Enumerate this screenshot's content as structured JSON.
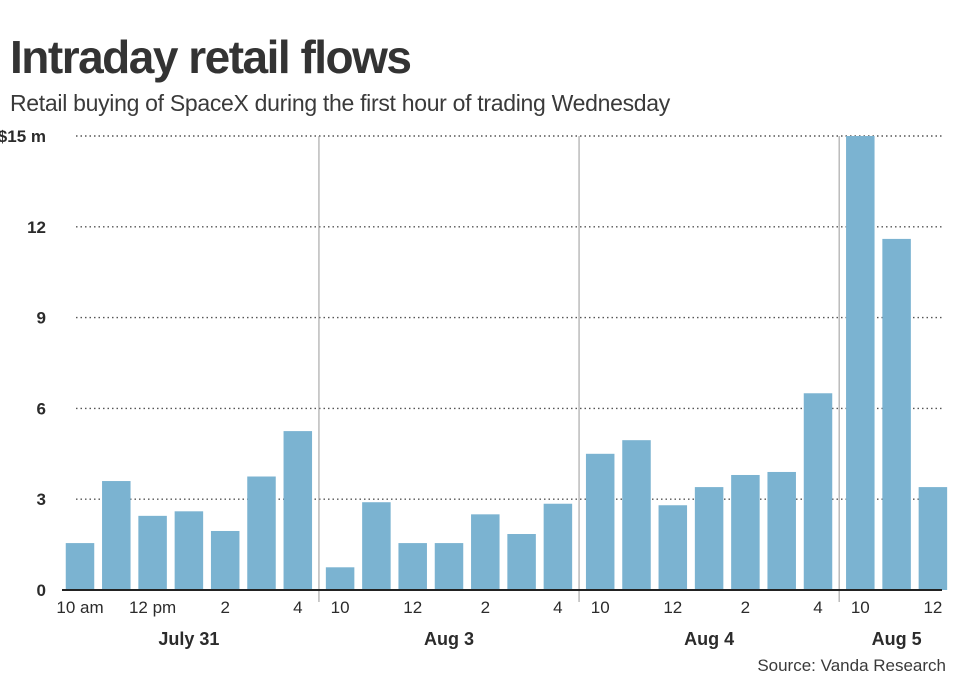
{
  "title": "Intraday retail flows",
  "subtitle": "Retail buying of SpaceX during the first hour of trading Wednesday",
  "source": "Source: Vanda Research",
  "colors": {
    "bar": "#7bb3d1",
    "grid": "#555555",
    "separator": "#999999",
    "axis": "#222222"
  },
  "chart_data": {
    "type": "bar",
    "title": "Intraday retail flows",
    "subtitle": "Retail buying of SpaceX during the first hour of trading Wednesday",
    "ylim": [
      0,
      15
    ],
    "yticks": [
      {
        "value": 0,
        "label": "0"
      },
      {
        "value": 3,
        "label": "3"
      },
      {
        "value": 6,
        "label": "6"
      },
      {
        "value": 9,
        "label": "9"
      },
      {
        "value": 12,
        "label": "12"
      },
      {
        "value": 15,
        "label": "$15 m"
      }
    ],
    "grid": "horizontal-dotted",
    "groups": [
      {
        "label": "July 31",
        "values": [
          1.55,
          3.6,
          2.45,
          2.6,
          1.95,
          3.75,
          5.25
        ],
        "tick_labels": [
          {
            "index": 0,
            "label": "10 am"
          },
          {
            "index": 2,
            "label": "12 pm"
          },
          {
            "index": 4,
            "label": "2"
          },
          {
            "index": 6,
            "label": "4"
          }
        ]
      },
      {
        "label": "Aug 3",
        "values": [
          0.75,
          2.9,
          1.55,
          1.55,
          2.5,
          1.85,
          2.85
        ],
        "tick_labels": [
          {
            "index": 0,
            "label": "10"
          },
          {
            "index": 2,
            "label": "12"
          },
          {
            "index": 4,
            "label": "2"
          },
          {
            "index": 6,
            "label": "4"
          }
        ]
      },
      {
        "label": "Aug 4",
        "values": [
          4.5,
          4.95,
          2.8,
          3.4,
          3.8,
          3.9,
          6.5
        ],
        "tick_labels": [
          {
            "index": 0,
            "label": "10"
          },
          {
            "index": 2,
            "label": "12"
          },
          {
            "index": 4,
            "label": "2"
          },
          {
            "index": 6,
            "label": "4"
          }
        ]
      },
      {
        "label": "Aug 5",
        "values": [
          15.0,
          11.6,
          3.4
        ],
        "tick_labels": [
          {
            "index": 0,
            "label": "10"
          },
          {
            "index": 2,
            "label": "12"
          }
        ]
      }
    ]
  }
}
